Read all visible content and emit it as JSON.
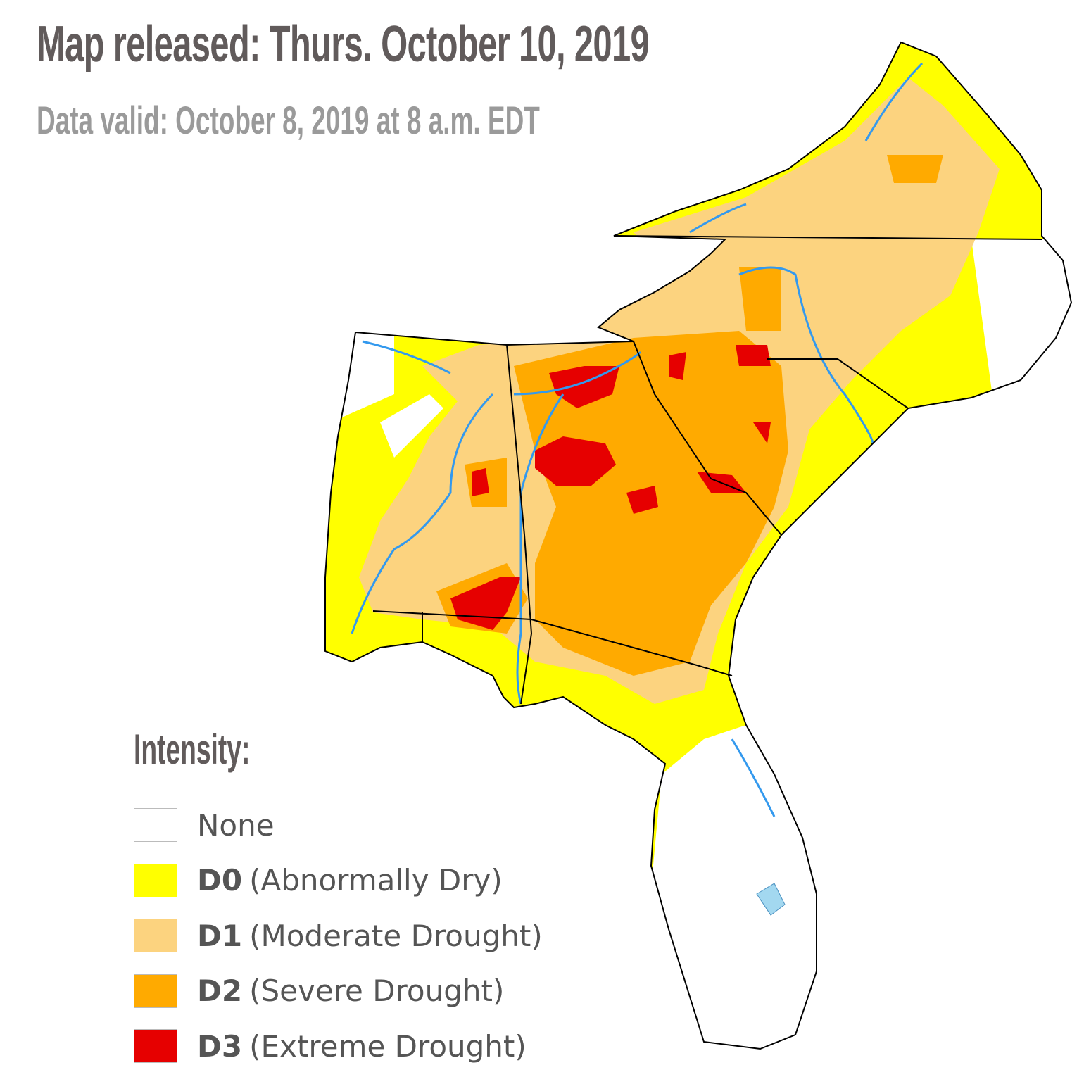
{
  "header": {
    "title": "Map released: Thurs. October 10, 2019",
    "subtitle": "Data valid: October 8, 2019 at 8 a.m. EDT"
  },
  "legend": {
    "title": "Intensity:",
    "items": [
      {
        "label": "None",
        "color": "#ffffff"
      },
      {
        "code": "D0",
        "description": "(Abnormally Dry)",
        "color": "#ffff00"
      },
      {
        "code": "D1",
        "description": "(Moderate Drought)",
        "color": "#fcd37f"
      },
      {
        "code": "D2",
        "description": "(Severe Drought)",
        "color": "#ffaa00"
      },
      {
        "code": "D3",
        "description": "(Extreme Drought)",
        "color": "#e60000"
      }
    ]
  }
}
